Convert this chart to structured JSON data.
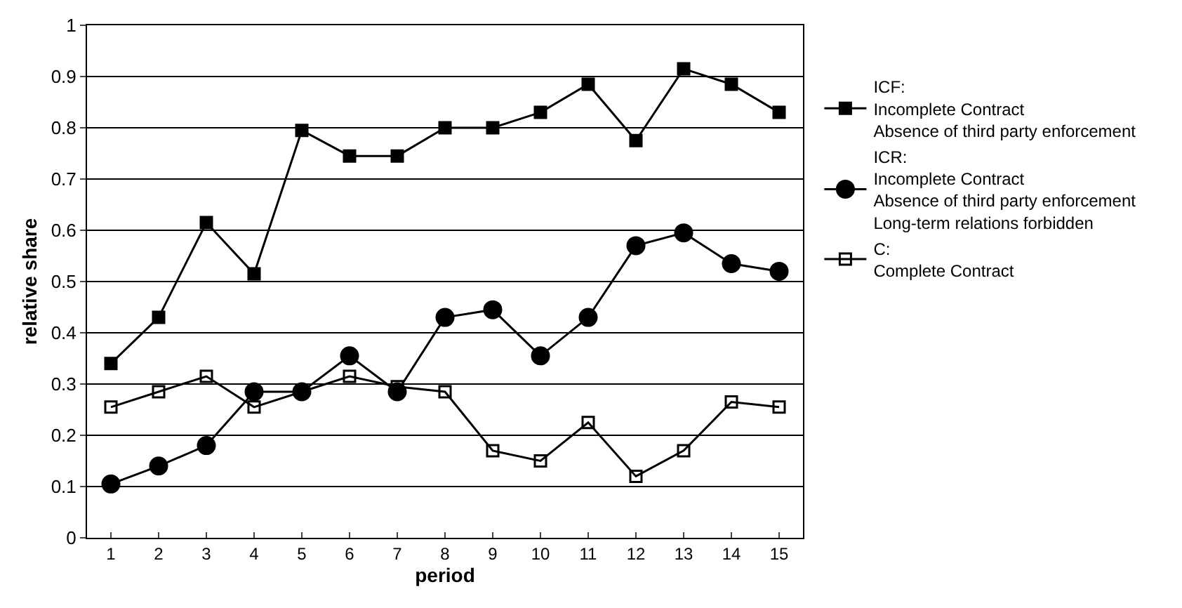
{
  "chart_data": {
    "type": "line",
    "xlabel": "period",
    "ylabel": "relative share",
    "x": [
      1,
      2,
      3,
      4,
      5,
      6,
      7,
      8,
      9,
      10,
      11,
      12,
      13,
      14,
      15
    ],
    "xlim": [
      0.5,
      15.5
    ],
    "xticks": [
      1,
      2,
      3,
      4,
      5,
      6,
      7,
      8,
      9,
      10,
      11,
      12,
      13,
      14,
      15
    ],
    "ylim": [
      0,
      1
    ],
    "yticks": [
      0,
      0.1,
      0.2,
      0.3,
      0.4,
      0.5,
      0.6,
      0.7,
      0.8,
      0.9,
      1
    ],
    "grid": "y",
    "legend": "right",
    "series": [
      {
        "name": "ICF:\nIncomplete Contract\nAbsence of third party enforcement",
        "color": "#000000",
        "marker": "square",
        "values": [
          0.34,
          0.43,
          0.615,
          0.515,
          0.795,
          0.745,
          0.745,
          0.8,
          0.8,
          0.83,
          0.885,
          0.775,
          0.915,
          0.885,
          0.83
        ]
      },
      {
        "name": "ICR:\nIncomplete Contract\nAbsence of third party enforcement\nLong-term relations forbidden",
        "color": "#000000",
        "marker": "circle",
        "values": [
          0.105,
          0.14,
          0.18,
          0.285,
          0.285,
          0.355,
          0.285,
          0.43,
          0.445,
          0.355,
          0.43,
          0.57,
          0.595,
          0.535,
          0.52
        ]
      },
      {
        "name": "C:\nComplete Contract",
        "color": "#000000",
        "marker": "square-open",
        "values": [
          0.255,
          0.285,
          0.315,
          0.255,
          0.285,
          0.315,
          0.295,
          0.285,
          0.17,
          0.15,
          0.225,
          0.12,
          0.17,
          0.265,
          0.255
        ]
      }
    ]
  }
}
